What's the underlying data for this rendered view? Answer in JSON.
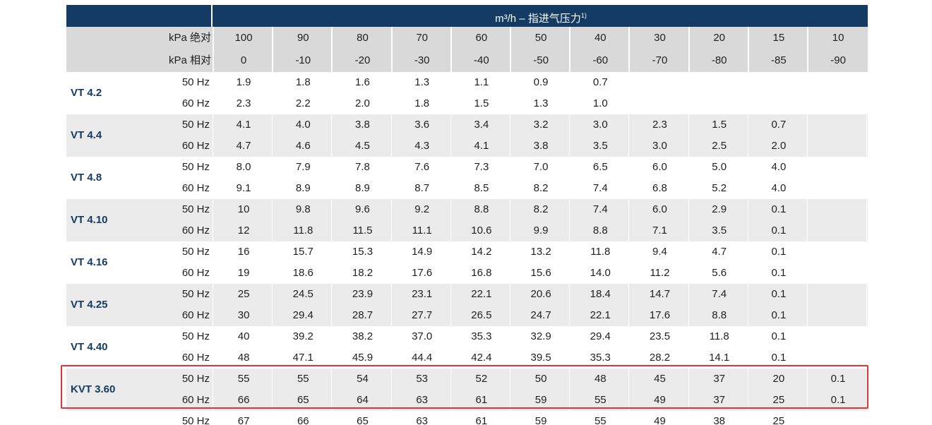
{
  "header": {
    "unit_title": "m³/h – 指进气压力",
    "footnote_mark": "1)",
    "abs_label": "kPa 绝对",
    "rel_label": "kPa 相对",
    "abs_values": [
      "100",
      "90",
      "80",
      "70",
      "60",
      "50",
      "40",
      "30",
      "20",
      "15",
      "10"
    ],
    "rel_values": [
      "0",
      "-10",
      "-20",
      "-30",
      "-40",
      "-50",
      "-60",
      "-70",
      "-80",
      "-85",
      "-90"
    ]
  },
  "rows": [
    {
      "model": "VT 4.2",
      "hz50": "50 Hz",
      "hz60": "60 Hz",
      "v50": [
        "1.9",
        "1.8",
        "1.6",
        "1.3",
        "1.1",
        "0.9",
        "0.7",
        "",
        "",
        "",
        ""
      ],
      "v60": [
        "2.3",
        "2.2",
        "2.0",
        "1.8",
        "1.5",
        "1.3",
        "1.0",
        "",
        "",
        "",
        ""
      ]
    },
    {
      "model": "VT 4.4",
      "hz50": "50 Hz",
      "hz60": "60 Hz",
      "v50": [
        "4.1",
        "4.0",
        "3.8",
        "3.6",
        "3.4",
        "3.2",
        "3.0",
        "2.3",
        "1.5",
        "0.7",
        ""
      ],
      "v60": [
        "4.7",
        "4.6",
        "4.5",
        "4.3",
        "4.1",
        "3.8",
        "3.5",
        "3.0",
        "2.5",
        "2.0",
        ""
      ]
    },
    {
      "model": "VT 4.8",
      "hz50": "50 Hz",
      "hz60": "60 Hz",
      "v50": [
        "8.0",
        "7.9",
        "7.8",
        "7.6",
        "7.3",
        "7.0",
        "6.5",
        "6.0",
        "5.0",
        "4.0",
        ""
      ],
      "v60": [
        "9.1",
        "8.9",
        "8.9",
        "8.7",
        "8.5",
        "8.2",
        "7.4",
        "6.8",
        "5.2",
        "4.0",
        ""
      ]
    },
    {
      "model": "VT 4.10",
      "hz50": "50 Hz",
      "hz60": "60 Hz",
      "v50": [
        "10",
        "9.8",
        "9.6",
        "9.2",
        "8.8",
        "8.2",
        "7.4",
        "6.0",
        "2.9",
        "0.1",
        ""
      ],
      "v60": [
        "12",
        "11.8",
        "11.5",
        "11.1",
        "10.6",
        "9.9",
        "8.8",
        "7.1",
        "3.5",
        "0.1",
        ""
      ]
    },
    {
      "model": "VT 4.16",
      "hz50": "50 Hz",
      "hz60": "60 Hz",
      "v50": [
        "16",
        "15.7",
        "15.3",
        "14.9",
        "14.2",
        "13.2",
        "11.8",
        "9.4",
        "4.7",
        "0.1",
        ""
      ],
      "v60": [
        "19",
        "18.6",
        "18.2",
        "17.6",
        "16.8",
        "15.6",
        "14.0",
        "11.2",
        "5.6",
        "0.1",
        ""
      ]
    },
    {
      "model": "VT 4.25",
      "hz50": "50 Hz",
      "hz60": "60 Hz",
      "v50": [
        "25",
        "24.5",
        "23.9",
        "23.1",
        "22.1",
        "20.6",
        "18.4",
        "14.7",
        "7.4",
        "0.1",
        ""
      ],
      "v60": [
        "30",
        "29.4",
        "28.7",
        "27.7",
        "26.5",
        "24.7",
        "22.1",
        "17.6",
        "8.8",
        "0.1",
        ""
      ]
    },
    {
      "model": "VT 4.40",
      "hz50": "50 Hz",
      "hz60": "60 Hz",
      "v50": [
        "40",
        "39.2",
        "38.2",
        "37.0",
        "35.3",
        "32.9",
        "29.4",
        "23.5",
        "11.8",
        "0.1",
        ""
      ],
      "v60": [
        "48",
        "47.1",
        "45.9",
        "44.4",
        "42.4",
        "39.5",
        "35.3",
        "28.2",
        "14.1",
        "0.1",
        ""
      ]
    },
    {
      "model": "KVT 3.60",
      "hz50": "50 Hz",
      "hz60": "60 Hz",
      "v50": [
        "55",
        "55",
        "54",
        "53",
        "52",
        "50",
        "48",
        "45",
        "37",
        "20",
        "0.1"
      ],
      "v60": [
        "66",
        "65",
        "64",
        "63",
        "61",
        "59",
        "55",
        "49",
        "37",
        "25",
        "0.1"
      ]
    }
  ],
  "cut_row": {
    "hz": "50 Hz",
    "values": [
      "67",
      "66",
      "65",
      "63",
      "61",
      "59",
      "55",
      "49",
      "38",
      "25",
      ""
    ]
  }
}
